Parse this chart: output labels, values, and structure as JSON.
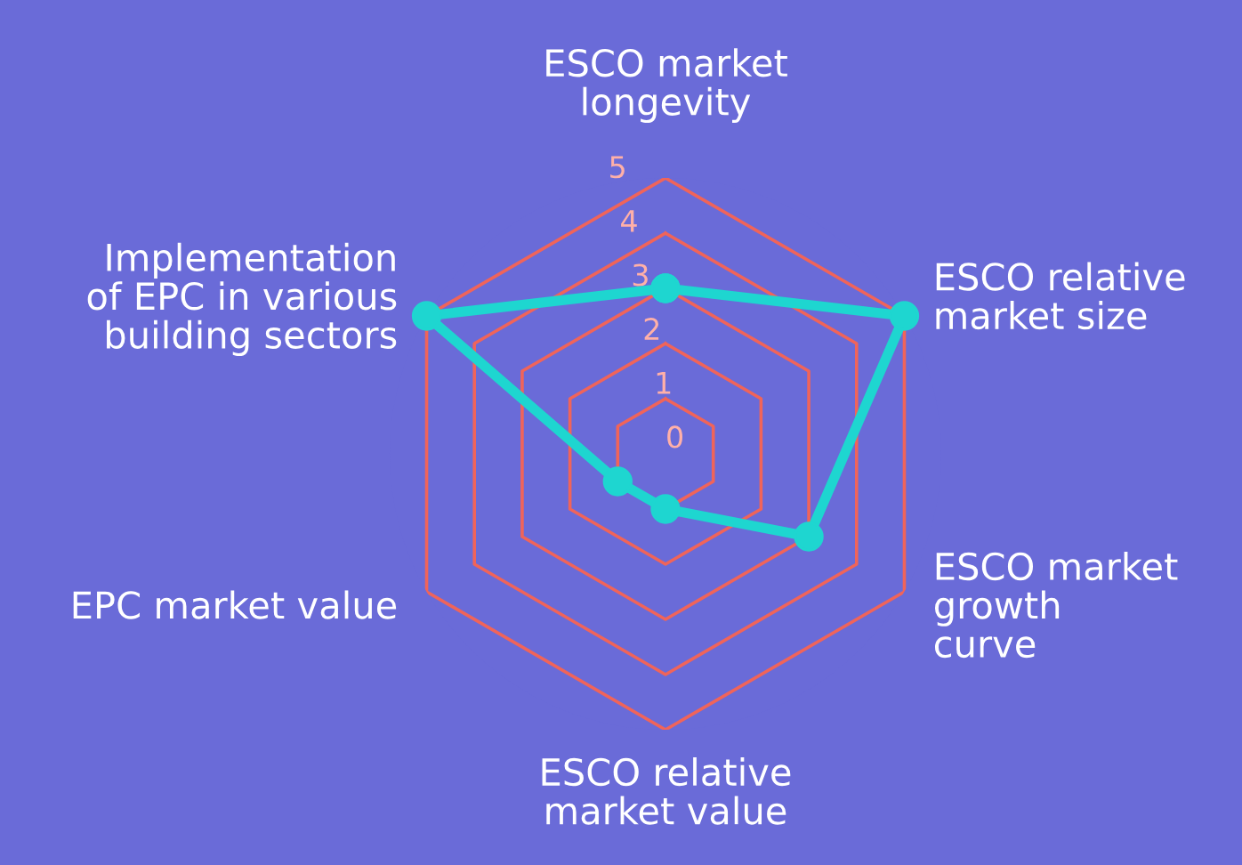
{
  "chart_data": {
    "type": "radar",
    "categories": [
      "ESCO market\nlongevity",
      "ESCO relative\nmarket size",
      "ESCO market\ngrowth\ncurve",
      "ESCO relative\nmarket value",
      "EPC market value",
      "Implementation\nof EPC in various\nbuilding sectors"
    ],
    "series": [
      {
        "color": "#1ed6d0",
        "values": [
          3,
          5,
          3,
          1,
          1,
          5
        ]
      }
    ],
    "ylim": [
      0,
      5
    ],
    "yticks": [
      0,
      1,
      2,
      3,
      4,
      5
    ],
    "grid": true,
    "marker": "circle",
    "line_style": "solid"
  }
}
